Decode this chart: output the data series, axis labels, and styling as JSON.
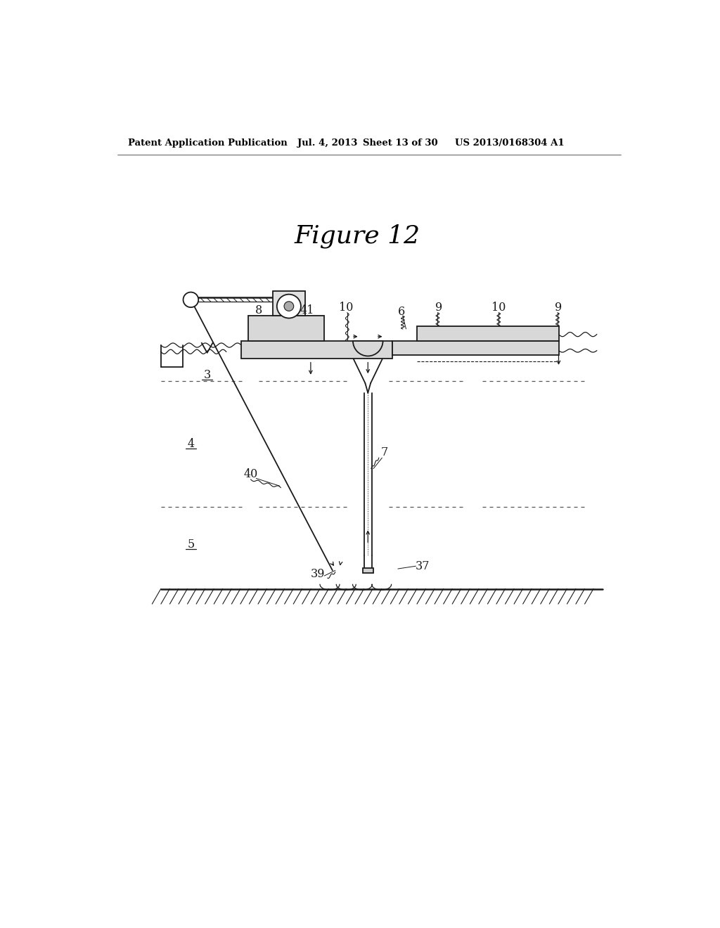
{
  "title": "Figure 12",
  "header_left": "Patent Application Publication",
  "header_mid_date": "Jul. 4, 2013",
  "header_mid_sheet": "Sheet 13 of 30",
  "header_right": "US 2013/0168304 A1",
  "bg_color": "#ffffff",
  "line_color": "#1a1a1a"
}
